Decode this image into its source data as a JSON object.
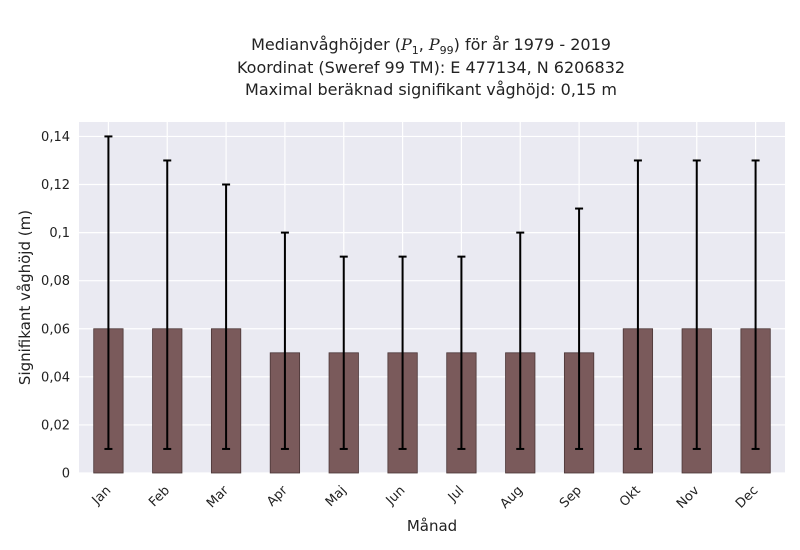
{
  "title": {
    "line1_prefix": "Medianvåghöjder (",
    "p_low": "P",
    "p_low_sub": "1",
    "p_sep": ", ",
    "p_high": "P",
    "p_high_sub": "99",
    "line1_suffix": ") för år 1979 - 2019",
    "line2": "Koordinat (Sweref 99 TM): E 477134, N 6206832",
    "line3": "Maximal beräknad signifikant våghöjd: 0,15 m"
  },
  "colors": {
    "plot_bg": "#eaeaf2",
    "grid": "#ffffff",
    "bar_fill": "#7a5a5b",
    "bar_edge": "#4a3536",
    "error_bar": "#000000"
  },
  "chart_data": {
    "type": "bar",
    "categories": [
      "Jan",
      "Feb",
      "Mar",
      "Apr",
      "Maj",
      "Jun",
      "Jul",
      "Aug",
      "Sep",
      "Okt",
      "Nov",
      "Dec"
    ],
    "values": [
      0.06,
      0.06,
      0.06,
      0.05,
      0.05,
      0.05,
      0.05,
      0.05,
      0.05,
      0.06,
      0.06,
      0.06
    ],
    "error_low": [
      0.01,
      0.01,
      0.01,
      0.01,
      0.01,
      0.01,
      0.01,
      0.01,
      0.01,
      0.01,
      0.01,
      0.01
    ],
    "error_high": [
      0.14,
      0.13,
      0.12,
      0.1,
      0.09,
      0.09,
      0.09,
      0.1,
      0.11,
      0.13,
      0.13,
      0.13
    ],
    "xlabel": "Månad",
    "ylabel": "Signifikant våghöjd (m)",
    "ylim": [
      0,
      0.146
    ],
    "yticks": [
      0,
      0.02,
      0.04,
      0.06,
      0.08,
      0.1,
      0.12,
      0.14
    ],
    "ytick_labels": [
      "0",
      "0,02",
      "0,04",
      "0,06",
      "0,08",
      "0,1",
      "0,12",
      "0,14"
    ],
    "grid": true
  }
}
